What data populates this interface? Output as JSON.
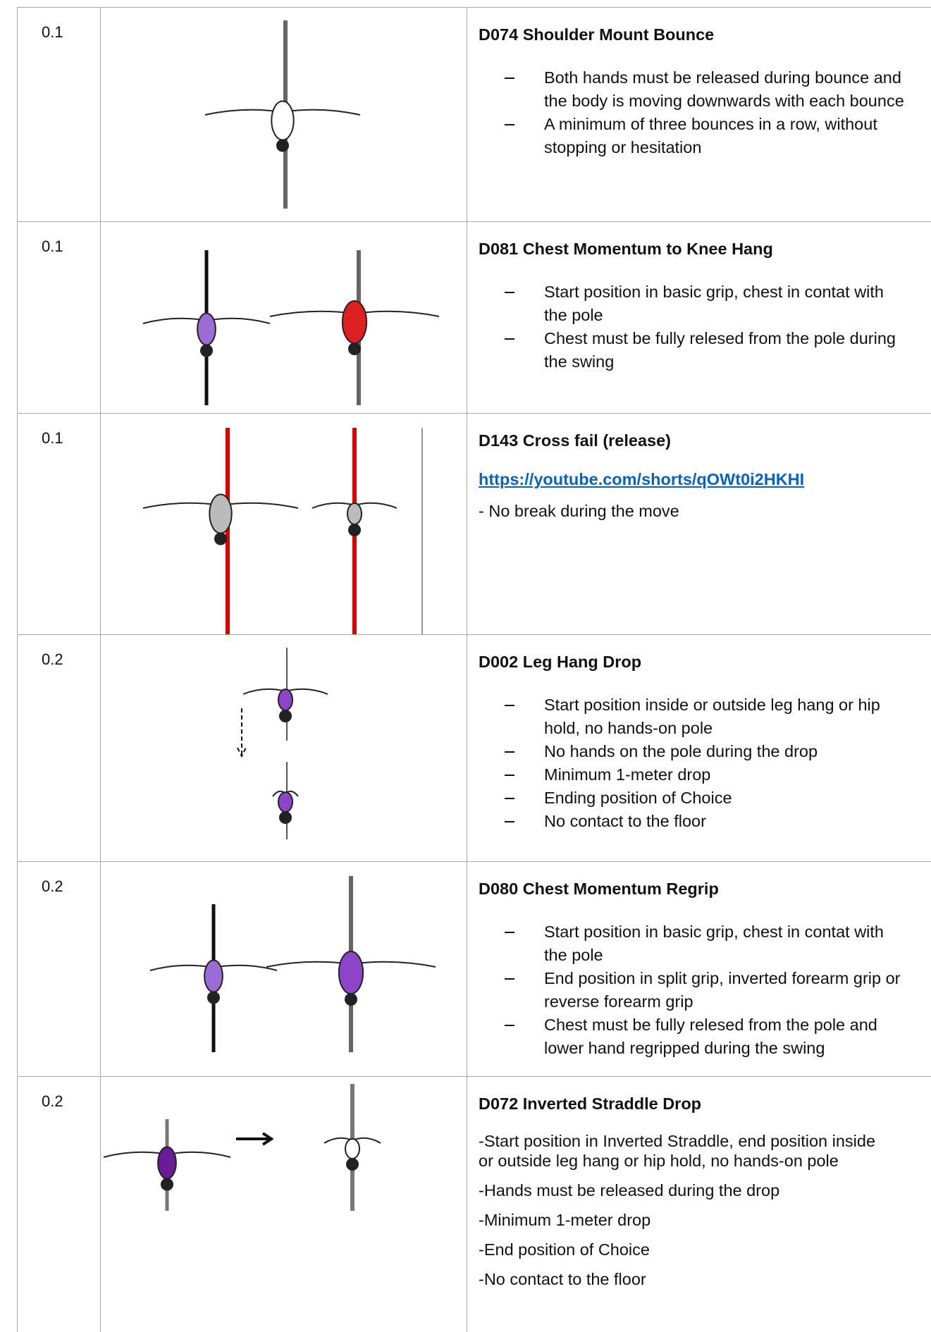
{
  "table": {
    "rows": [
      {
        "score": "0.1",
        "title": "D074 Shoulder Mount Bounce",
        "bullets": [
          "Both hands must be released during bounce and the body is moving downwards with each bounce",
          "A minimum of three bounces in a row, without stopping or hesitation"
        ]
      },
      {
        "score": "0.1",
        "title": "D081 Chest Momentum to Knee Hang",
        "bullets": [
          "Start position in basic grip, chest in contat with the pole",
          "Chest must be fully relesed from the pole during the swing"
        ]
      },
      {
        "score": "0.1",
        "title": "D143  Cross fail (release)",
        "link": "https://youtube.com/shorts/qOWt0i2HKHI",
        "paragraphs": [
          "- No break during the move"
        ]
      },
      {
        "score": "0.2",
        "title": "D002 Leg Hang Drop",
        "bullets": [
          "Start position inside or outside leg hang or hip hold, no hands-on pole",
          "No hands on the pole during the drop",
          "Minimum 1-meter drop",
          "Ending position of Choice",
          "No contact to the floor"
        ]
      },
      {
        "score": "0.2",
        "title": "D080 Chest Momentum Regrip",
        "bullets": [
          "Start position in basic grip, chest in contat with the pole",
          "End position in split grip, inverted forearm grip or reverse forearm grip",
          "Chest must be fully relesed from the pole and lower hand regripped during the swing"
        ]
      },
      {
        "score": "0.2",
        "title": "D072 Inverted Straddle Drop",
        "paragraphs": [
          "-Start position in Inverted Straddle, end position inside or outside leg hang or hip hold, no hands-on pole",
          "-Hands must be released during the drop",
          "-Minimum 1-meter drop",
          "-End position of Choice",
          "-No contact to the floor"
        ]
      }
    ]
  }
}
